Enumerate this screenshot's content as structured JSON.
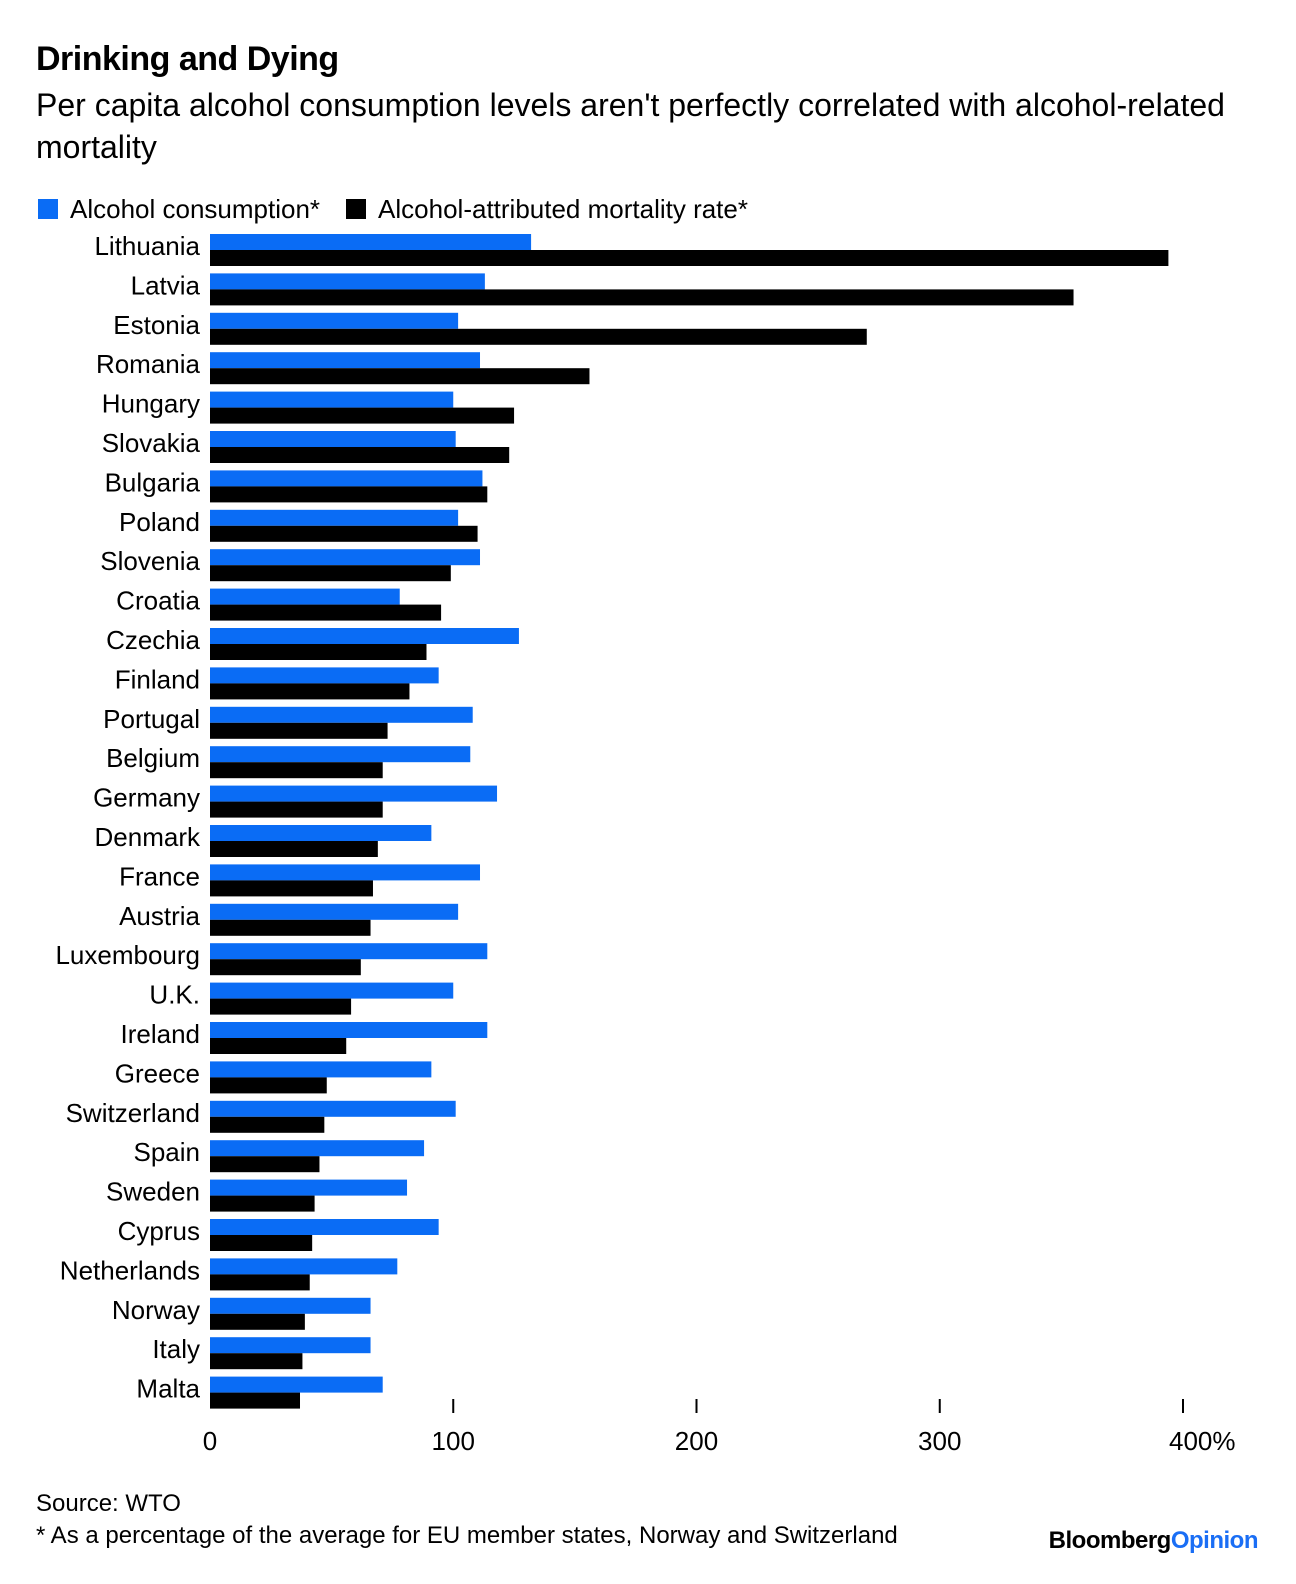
{
  "title": "Drinking and Dying",
  "subtitle": "Per capita alcohol consumption levels aren't perfectly correlated with alcohol-related mortality",
  "legend": {
    "consumption": "Alcohol consumption*",
    "mortality": "Alcohol-attributed mortality rate*"
  },
  "colors": {
    "consumption": "#0a6cf5",
    "mortality": "#000000"
  },
  "footer": {
    "source": "Source: WTO",
    "note": "* As a percentage of the average for EU member states, Norway and Switzerland",
    "brand_part1": "Bloomberg",
    "brand_part2": "Opinion"
  },
  "chart_data": {
    "type": "bar",
    "orientation": "horizontal",
    "categories": [
      "Lithuania",
      "Latvia",
      "Estonia",
      "Romania",
      "Hungary",
      "Slovakia",
      "Bulgaria",
      "Poland",
      "Slovenia",
      "Croatia",
      "Czechia",
      "Finland",
      "Portugal",
      "Belgium",
      "Germany",
      "Denmark",
      "France",
      "Austria",
      "Luxembourg",
      "U.K.",
      "Ireland",
      "Greece",
      "Switzerland",
      "Spain",
      "Sweden",
      "Cyprus",
      "Netherlands",
      "Norway",
      "Italy",
      "Malta"
    ],
    "series": [
      {
        "name": "Alcohol consumption*",
        "values": [
          132,
          113,
          102,
          111,
          100,
          101,
          112,
          102,
          111,
          78,
          127,
          94,
          108,
          107,
          118,
          91,
          111,
          102,
          114,
          100,
          114,
          91,
          101,
          88,
          81,
          94,
          77,
          66,
          66,
          71
        ]
      },
      {
        "name": "Alcohol-attributed mortality rate*",
        "values": [
          394,
          355,
          270,
          156,
          125,
          123,
          114,
          110,
          99,
          95,
          89,
          82,
          73,
          71,
          71,
          69,
          67,
          66,
          62,
          58,
          56,
          48,
          47,
          45,
          43,
          42,
          41,
          39,
          38,
          37
        ]
      }
    ],
    "xticks": [
      "0",
      "100",
      "200",
      "300",
      "400%"
    ],
    "xlim": [
      0,
      400
    ],
    "grid": false,
    "legend_position": "top-left"
  }
}
